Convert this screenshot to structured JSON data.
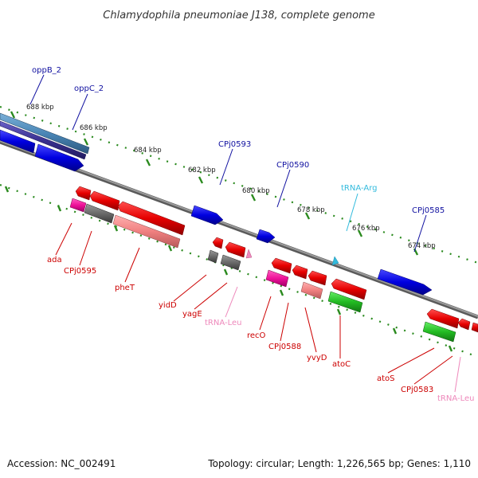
{
  "title": "Chlamydophila pneumoniae J138, complete genome",
  "footer": {
    "accession": "Accession: NC_002491",
    "summary": "Topology: circular; Length: 1,226,565 bp; Genes: 1,110"
  },
  "colors": {
    "backbone": "#7f7f7f",
    "tick": "#2a8a1e",
    "forward_label": "#1010a0",
    "reverse_label": "#cc0000",
    "trna_forward": "#33bbdd",
    "trna_reverse": "#ee88bb"
  },
  "ticks": [
    {
      "label": "688 kbp"
    },
    {
      "label": "686 kbp"
    },
    {
      "label": "684 kbp"
    },
    {
      "label": "682 kbp"
    },
    {
      "label": "680 kbp"
    },
    {
      "label": "678 kbp"
    },
    {
      "label": "676 kbp"
    },
    {
      "label": "674 kbp"
    }
  ],
  "forward_labels": [
    {
      "text": "oppB_2",
      "kind": "gene"
    },
    {
      "text": "oppC_2",
      "kind": "gene"
    },
    {
      "text": "CPj0593",
      "kind": "gene"
    },
    {
      "text": "CPj0590",
      "kind": "gene"
    },
    {
      "text": "tRNA-Arg",
      "kind": "trna"
    },
    {
      "text": "CPj0585",
      "kind": "gene"
    }
  ],
  "reverse_labels": [
    {
      "text": "ada",
      "kind": "gene"
    },
    {
      "text": "CPj0595",
      "kind": "gene"
    },
    {
      "text": "pheT",
      "kind": "gene"
    },
    {
      "text": "yidD",
      "kind": "gene"
    },
    {
      "text": "yagE",
      "kind": "gene"
    },
    {
      "text": "tRNA-Leu",
      "kind": "trna"
    },
    {
      "text": "recO",
      "kind": "gene"
    },
    {
      "text": "CPj0588",
      "kind": "gene"
    },
    {
      "text": "yvyD",
      "kind": "gene"
    },
    {
      "text": "atoC",
      "kind": "gene"
    },
    {
      "text": "atoS",
      "kind": "gene"
    },
    {
      "text": "CPj0583",
      "kind": "gene"
    },
    {
      "text": "tRNA-Leu",
      "kind": "trna"
    }
  ]
}
